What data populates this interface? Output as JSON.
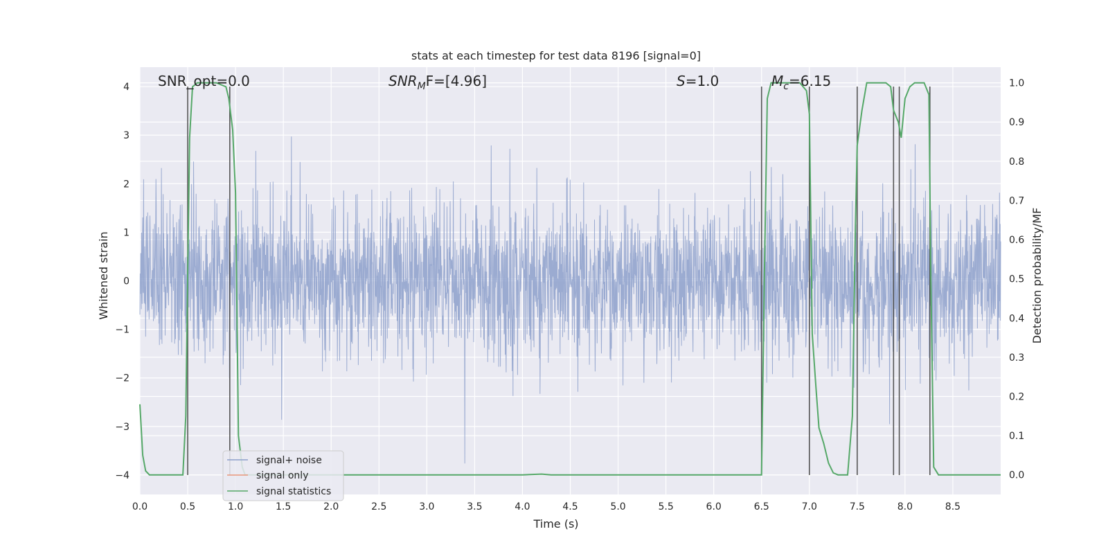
{
  "chart_data": {
    "type": "line",
    "title": "stats at each timestep for test data 8196 [signal=0]",
    "xlabel": "Time (s)",
    "ylabel_left": "Whitened strain",
    "ylabel_right": "Detection probability/MF",
    "xlim": [
      0.0,
      9.0
    ],
    "ylim_left": [
      -4.4,
      4.4
    ],
    "ylim_right": [
      -0.05,
      1.04
    ],
    "x_ticks": [
      "0.0",
      "0.5",
      "1.0",
      "1.5",
      "2.0",
      "2.5",
      "3.0",
      "3.5",
      "4.0",
      "4.5",
      "5.0",
      "5.5",
      "6.0",
      "6.5",
      "7.0",
      "7.5",
      "8.0",
      "8.5"
    ],
    "y_left_ticks": [
      "4",
      "3",
      "2",
      "1",
      "0",
      "−1",
      "−2",
      "−3",
      "−4"
    ],
    "y_right_ticks": [
      "1.0",
      "0.9",
      "0.8",
      "0.7",
      "0.6",
      "0.5",
      "0.4",
      "0.3",
      "0.2",
      "0.1",
      "0.0"
    ],
    "grid": true,
    "annotations": {
      "snr_opt": "SNR_opt=0.0",
      "snr_mf_main": "SNR",
      "snr_mf_sub": "M",
      "snr_mf_rest": "F=[4.96]",
      "s_main": "S",
      "s_rest": "=1.0",
      "mc_main": "M",
      "mc_sub": "c",
      "mc_rest": "=6.15"
    },
    "legend": {
      "placement": "lower-left",
      "entries": [
        "signal+ noise",
        "signal only",
        "signal statistics"
      ]
    },
    "colors": {
      "noise": "#8da0cb",
      "signal_only": "#e9967a",
      "statistics": "#55a868",
      "vlines": "#555555",
      "background": "#eaeaf2"
    },
    "series": [
      {
        "name": "signal statistics",
        "x": [
          0.0,
          0.03,
          0.06,
          0.1,
          0.2,
          0.3,
          0.4,
          0.45,
          0.48,
          0.5,
          0.52,
          0.55,
          0.6,
          0.7,
          0.8,
          0.9,
          0.93,
          0.97,
          1.0,
          1.03,
          1.07,
          1.1,
          1.2,
          2.0,
          3.0,
          4.0,
          4.2,
          4.3,
          5.0,
          6.0,
          6.5,
          6.53,
          6.56,
          6.6,
          6.7,
          6.8,
          6.9,
          6.97,
          7.0,
          7.03,
          7.07,
          7.1,
          7.15,
          7.2,
          7.25,
          7.3,
          7.4,
          7.45,
          7.48,
          7.5,
          7.55,
          7.6,
          7.7,
          7.8,
          7.85,
          7.88,
          7.93,
          7.96,
          8.0,
          8.05,
          8.1,
          8.2,
          8.25,
          8.27,
          8.3,
          8.35,
          8.4,
          9.0
        ],
        "values": [
          0.18,
          0.05,
          0.01,
          0.0,
          0.0,
          0.0,
          0.0,
          0.0,
          0.15,
          0.52,
          0.86,
          0.99,
          1.0,
          1.0,
          1.0,
          0.99,
          0.96,
          0.88,
          0.72,
          0.1,
          0.02,
          0.0,
          0.0,
          0.0,
          0.0,
          0.0,
          0.002,
          0.0,
          0.0,
          0.0,
          0.0,
          0.52,
          0.96,
          1.0,
          1.0,
          1.0,
          1.0,
          0.98,
          0.92,
          0.36,
          0.22,
          0.12,
          0.08,
          0.03,
          0.005,
          0.0,
          0.0,
          0.15,
          0.62,
          0.84,
          0.93,
          1.0,
          1.0,
          1.0,
          0.99,
          0.93,
          0.9,
          0.86,
          0.96,
          0.99,
          1.0,
          1.0,
          0.97,
          0.5,
          0.02,
          0.0,
          0.0,
          0.0
        ]
      },
      {
        "name": "signal+ noise",
        "amplitude_range": [
          -4.0,
          4.0
        ],
        "typical_range": [
          -2.0,
          2.0
        ]
      },
      {
        "name": "signal only",
        "values_note": ""
      }
    ],
    "vertical_lines_x": [
      0.5,
      0.94,
      6.5,
      7.0,
      7.5,
      7.88,
      7.94,
      8.26
    ]
  }
}
